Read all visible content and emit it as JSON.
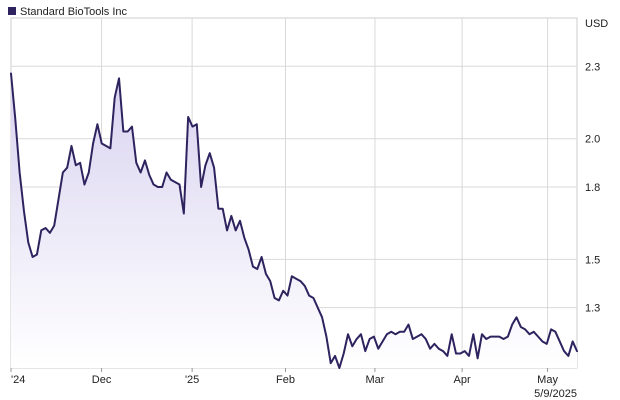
{
  "chart_data": {
    "type": "area",
    "title": "",
    "xlabel": "",
    "ylabel": "",
    "unit": "USD",
    "legend": {
      "placement": "top-left",
      "label": "Standard BioTools Inc"
    },
    "ylim": [
      1.05,
      2.5
    ],
    "yticks": [
      {
        "value": 2.3,
        "label": "2.3"
      },
      {
        "value": 2.0,
        "label": "2.0"
      },
      {
        "value": 1.8,
        "label": "1.8"
      },
      {
        "value": 1.5,
        "label": "1.5"
      },
      {
        "value": 1.3,
        "label": "1.3"
      }
    ],
    "xticks": [
      {
        "label": "'24"
      },
      {
        "label": "Dec"
      },
      {
        "label": "'25"
      },
      {
        "label": "Feb"
      },
      {
        "label": "Mar"
      },
      {
        "label": "Apr"
      },
      {
        "label": "May"
      }
    ],
    "date_label": "5/9/2025",
    "grid": true,
    "colors": {
      "line": "#2e235f",
      "fill_top": "#d9d3f0",
      "fill_bottom": "#ffffff",
      "grid": "#d9d9d9"
    },
    "series": [
      {
        "name": "Standard BioTools Inc",
        "values": [
          2.27,
          2.08,
          1.86,
          1.7,
          1.57,
          1.51,
          1.52,
          1.62,
          1.63,
          1.61,
          1.64,
          1.75,
          1.86,
          1.88,
          1.97,
          1.89,
          1.9,
          1.81,
          1.86,
          1.98,
          2.06,
          1.98,
          1.97,
          1.96,
          2.17,
          2.25,
          2.03,
          2.03,
          2.05,
          1.9,
          1.86,
          1.91,
          1.85,
          1.81,
          1.8,
          1.8,
          1.86,
          1.83,
          1.82,
          1.81,
          1.69,
          2.09,
          2.05,
          2.06,
          1.8,
          1.89,
          1.94,
          1.88,
          1.71,
          1.71,
          1.62,
          1.68,
          1.62,
          1.66,
          1.59,
          1.54,
          1.47,
          1.46,
          1.51,
          1.44,
          1.41,
          1.34,
          1.33,
          1.37,
          1.35,
          1.43,
          1.42,
          1.41,
          1.39,
          1.35,
          1.34,
          1.3,
          1.26,
          1.18,
          1.07,
          1.1,
          1.05,
          1.11,
          1.19,
          1.14,
          1.17,
          1.19,
          1.12,
          1.17,
          1.18,
          1.13,
          1.16,
          1.19,
          1.2,
          1.19,
          1.2,
          1.2,
          1.23,
          1.17,
          1.18,
          1.19,
          1.17,
          1.13,
          1.15,
          1.13,
          1.12,
          1.1,
          1.19,
          1.11,
          1.11,
          1.12,
          1.1,
          1.19,
          1.09,
          1.19,
          1.17,
          1.18,
          1.18,
          1.18,
          1.17,
          1.18,
          1.23,
          1.26,
          1.22,
          1.21,
          1.19,
          1.2,
          1.18,
          1.16,
          1.15,
          1.21,
          1.2,
          1.16,
          1.12,
          1.1,
          1.16,
          1.12
        ]
      }
    ]
  }
}
